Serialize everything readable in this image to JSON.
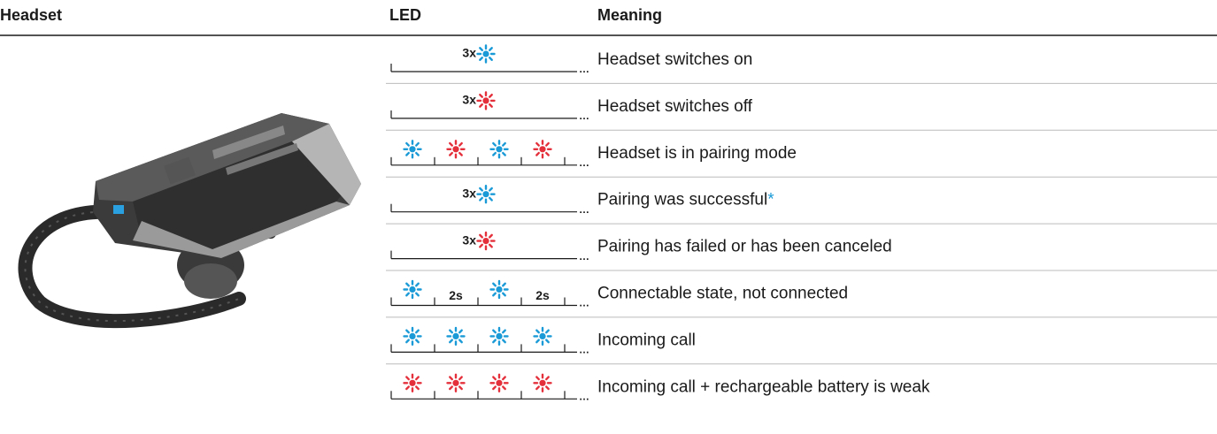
{
  "header": {
    "columns": [
      "Headset",
      "LED",
      "Meaning"
    ]
  },
  "rows": [
    {
      "led_label": "3x",
      "meaning": "Headset switches on"
    },
    {
      "led_label": "3x",
      "meaning": "Headset switches off"
    },
    {
      "meaning": "Headset is in pairing mode"
    },
    {
      "led_label": "3x",
      "meaning": "Pairing was successful",
      "note": "*"
    },
    {
      "led_label": "3x",
      "meaning": "Pairing has failed or has been canceled"
    },
    {
      "led_labels": [
        "2s",
        "2s"
      ],
      "meaning": "Connectable state, not connected"
    },
    {
      "meaning": "Incoming call"
    },
    {
      "meaning": "Incoming call + rechargeable battery is weak"
    }
  ]
}
